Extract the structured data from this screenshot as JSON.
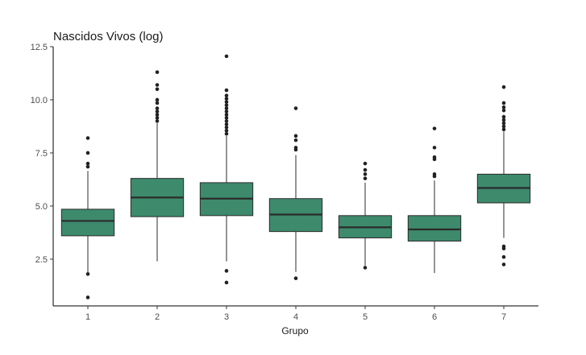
{
  "chart_data": {
    "type": "box",
    "title": "Nascidos Vivos (log)",
    "xlabel": "Grupo",
    "ylabel": "",
    "ylim": [
      0.3,
      12.5
    ],
    "yticks": [
      2.5,
      5.0,
      7.5,
      10.0,
      12.5
    ],
    "ytick_labels": [
      "2.5",
      "5.0",
      "7.5",
      "10.0",
      "12.5"
    ],
    "categories": [
      "1",
      "2",
      "3",
      "4",
      "5",
      "6",
      "7"
    ],
    "grid": false,
    "legend": "none",
    "box_fill": "#3d8a6d",
    "box_stroke": "#2b2b2b",
    "boxes": [
      {
        "group": "1",
        "whisker_low": 1.85,
        "q1": 3.6,
        "median": 4.3,
        "q3": 4.85,
        "whisker_high": 6.65,
        "outliers": [
          0.7,
          1.8,
          6.85,
          7.0,
          7.5,
          8.2
        ]
      },
      {
        "group": "2",
        "whisker_low": 2.4,
        "q1": 4.5,
        "median": 5.4,
        "q3": 6.3,
        "whisker_high": 8.9,
        "outliers": [
          9.0,
          9.15,
          9.3,
          9.45,
          9.6,
          9.85,
          10.0,
          10.5,
          10.7,
          11.3
        ]
      },
      {
        "group": "3",
        "whisker_low": 2.4,
        "q1": 4.55,
        "median": 5.35,
        "q3": 6.1,
        "whisker_high": 8.3,
        "outliers": [
          1.4,
          1.95,
          8.4,
          8.55,
          8.7,
          8.85,
          9.0,
          9.15,
          9.3,
          9.45,
          9.6,
          9.75,
          9.9,
          10.05,
          10.2,
          10.45,
          12.05
        ]
      },
      {
        "group": "4",
        "whisker_low": 1.9,
        "q1": 3.8,
        "median": 4.6,
        "q3": 5.35,
        "whisker_high": 7.4,
        "outliers": [
          1.6,
          7.65,
          7.75,
          8.1,
          8.3,
          9.6
        ]
      },
      {
        "group": "5",
        "whisker_low": 2.2,
        "q1": 3.5,
        "median": 4.0,
        "q3": 4.55,
        "whisker_high": 6.1,
        "outliers": [
          2.1,
          6.3,
          6.5,
          6.7,
          7.0
        ]
      },
      {
        "group": "6",
        "whisker_low": 1.85,
        "q1": 3.35,
        "median": 3.9,
        "q3": 4.55,
        "whisker_high": 6.2,
        "outliers": [
          6.4,
          6.5,
          7.2,
          7.3,
          7.75,
          8.65
        ]
      },
      {
        "group": "7",
        "whisker_low": 3.5,
        "q1": 5.15,
        "median": 5.85,
        "q3": 6.5,
        "whisker_high": 8.5,
        "outliers": [
          2.25,
          2.6,
          3.0,
          3.1,
          8.6,
          8.75,
          8.9,
          9.05,
          9.2,
          9.5,
          9.65,
          9.85,
          10.6
        ]
      }
    ]
  }
}
